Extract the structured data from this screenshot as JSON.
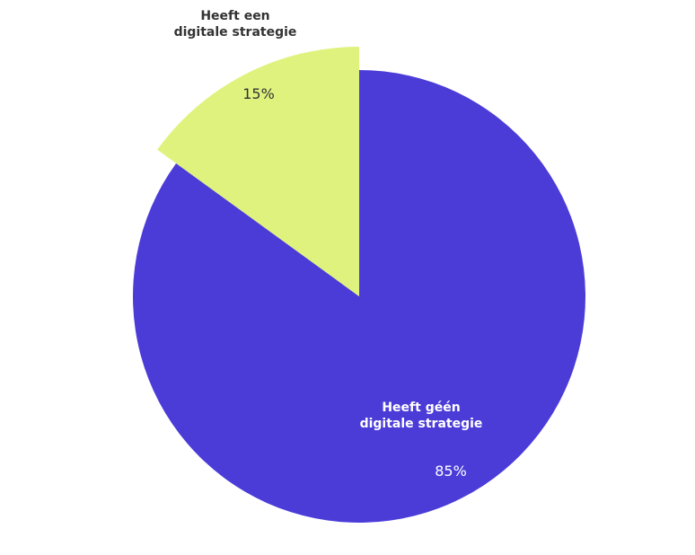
{
  "chart_data": {
    "type": "pie",
    "title": "",
    "start_angle_deg": 0,
    "direction": "clockwise",
    "slices": [
      {
        "label_lines": [
          "Heeft géén",
          "digitale strategie"
        ],
        "value": 85,
        "value_label": "85%",
        "color": "#4b3cd8",
        "text_color": "#ffffff",
        "pulled_out": false
      },
      {
        "label_lines": [
          "Heeft een",
          "digitale strategie"
        ],
        "value": 15,
        "value_label": "15%",
        "color": "#e0f27e",
        "text_color": "#333333",
        "pulled_out": true
      }
    ]
  }
}
